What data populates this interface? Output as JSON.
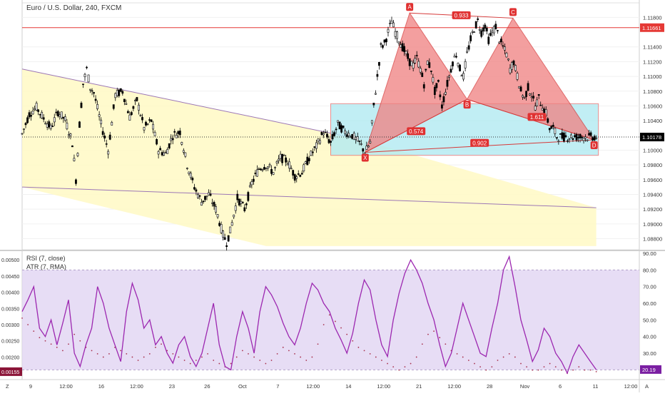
{
  "header": {
    "symbol_title": "Euro / U.S. Dollar, 240, FXCM"
  },
  "indicators": {
    "rsi_label": "RSI (7, close)",
    "atr_label": "ATR (7, RMA)"
  },
  "chart_data": [
    {
      "type": "candlestick",
      "title": "Euro / U.S. Dollar, 240, FXCM",
      "ylim": [
        1.0865,
        1.1192
      ],
      "y_ticks": [
        "1.11800",
        "1.11661",
        "1.11400",
        "1.11200",
        "1.11000",
        "1.10800",
        "1.10600",
        "1.10400",
        "1.10178",
        "1.10000",
        "1.09800",
        "1.09600",
        "1.09400",
        "1.09200",
        "1.09000",
        "1.08800"
      ],
      "x_ticks": [
        "9",
        "12:00",
        "16",
        "12:00",
        "23",
        "26",
        "Oct",
        "7",
        "12:00",
        "14",
        "12:00",
        "21",
        "12:00",
        "28",
        "Nov",
        "6",
        "11",
        "12:00"
      ],
      "last_price": 1.10178,
      "resistance_level": 1.11661,
      "price_path": [
        [
          0,
          1.1022
        ],
        [
          10,
          1.1049
        ],
        [
          20,
          1.1058
        ],
        [
          30,
          1.1043
        ],
        [
          40,
          1.103
        ],
        [
          50,
          1.1052
        ],
        [
          60,
          1.1041
        ],
        [
          70,
          1.101
        ],
        [
          75,
          1.096
        ],
        [
          80,
          1.1035
        ],
        [
          85,
          1.109
        ],
        [
          90,
          1.111
        ],
        [
          95,
          1.1085
        ],
        [
          100,
          1.1078
        ],
        [
          110,
          1.1035
        ],
        [
          120,
          1.1
        ],
        [
          130,
          1.1075
        ],
        [
          140,
          1.108
        ],
        [
          150,
          1.1045
        ],
        [
          160,
          1.1068
        ],
        [
          170,
          1.103
        ],
        [
          180,
          1.104
        ],
        [
          190,
          1.1
        ],
        [
          200,
          1.0995
        ],
        [
          210,
          1.102
        ],
        [
          220,
          1.1025
        ],
        [
          230,
          1.098
        ],
        [
          240,
          1.095
        ],
        [
          250,
          1.093
        ],
        [
          260,
          1.094
        ],
        [
          270,
          1.092
        ],
        [
          280,
          1.0885
        ],
        [
          285,
          1.0875
        ],
        [
          290,
          1.089
        ],
        [
          300,
          1.0935
        ],
        [
          310,
          1.092
        ],
        [
          320,
          1.0955
        ],
        [
          330,
          1.0975
        ],
        [
          340,
          1.098
        ],
        [
          350,
          1.097
        ],
        [
          360,
          1.099
        ],
        [
          370,
          1.0985
        ],
        [
          380,
          1.0965
        ],
        [
          390,
          1.097
        ],
        [
          400,
          1.099
        ],
        [
          410,
          1.1005
        ],
        [
          420,
          1.1025
        ],
        [
          430,
          1.101
        ],
        [
          440,
          1.1035
        ],
        [
          450,
          1.1025
        ],
        [
          460,
          1.102
        ],
        [
          470,
          1.101
        ],
        [
          478,
          1.0997
        ],
        [
          485,
          1.101
        ],
        [
          490,
          1.106
        ],
        [
          495,
          1.11
        ],
        [
          500,
          1.114
        ],
        [
          505,
          1.1145
        ],
        [
          510,
          1.116
        ],
        [
          515,
          1.1175
        ],
        [
          520,
          1.116
        ],
        [
          525,
          1.115
        ],
        [
          530,
          1.114
        ],
        [
          535,
          1.113
        ],
        [
          540,
          1.112
        ],
        [
          545,
          1.1115
        ],
        [
          550,
          1.1125
        ],
        [
          555,
          1.111
        ],
        [
          560,
          1.109
        ],
        [
          565,
          1.112
        ],
        [
          570,
          1.111
        ],
        [
          575,
          1.108
        ],
        [
          580,
          1.109
        ],
        [
          585,
          1.106
        ],
        [
          590,
          1.108
        ],
        [
          595,
          1.11
        ],
        [
          600,
          1.112
        ],
        [
          605,
          1.113
        ],
        [
          610,
          1.111
        ],
        [
          615,
          1.11
        ],
        [
          620,
          1.113
        ],
        [
          625,
          1.115
        ],
        [
          630,
          1.1165
        ],
        [
          635,
          1.1175
        ],
        [
          640,
          1.116
        ],
        [
          645,
          1.117
        ],
        [
          650,
          1.115
        ],
        [
          655,
          1.116
        ],
        [
          660,
          1.1168
        ],
        [
          665,
          1.115
        ],
        [
          670,
          1.114
        ],
        [
          675,
          1.113
        ],
        [
          680,
          1.111
        ],
        [
          685,
          1.112
        ],
        [
          690,
          1.11
        ],
        [
          695,
          1.108
        ],
        [
          700,
          1.107
        ],
        [
          705,
          1.1085
        ],
        [
          710,
          1.1075
        ],
        [
          715,
          1.106
        ],
        [
          720,
          1.107
        ],
        [
          725,
          1.106
        ],
        [
          730,
          1.105
        ],
        [
          735,
          1.103
        ],
        [
          740,
          1.103
        ],
        [
          745,
          1.1018
        ]
      ],
      "harmonic_pattern": {
        "points": [
          {
            "label": "X",
            "bar": 478,
            "price": 1.0997
          },
          {
            "label": "A",
            "bar": 540,
            "price": 1.1186
          },
          {
            "label": "B",
            "bar": 620,
            "price": 1.1069
          },
          {
            "label": "C",
            "bar": 684,
            "price": 1.1179
          },
          {
            "label": "D",
            "bar": 797,
            "price": 1.1014
          }
        ],
        "ratios": [
          {
            "label": "0.933",
            "between": "A-C"
          },
          {
            "label": "0.574",
            "between": "X-B"
          },
          {
            "label": "1.611",
            "between": "B-D"
          },
          {
            "label": "0.902",
            "between": "X-D"
          }
        ],
        "colors": {
          "fill": "#f08080",
          "line": "#d63939",
          "label": "#e03131"
        }
      },
      "zone_box": {
        "price_top": 1.1063,
        "price_bottom": 1.0993,
        "bar_start": 430,
        "bar_end": 803,
        "color": "#b2ebf2"
      },
      "channel": {
        "color": "#fff9c4",
        "line": "#9c77b5"
      }
    },
    {
      "type": "line",
      "title": "RSI (7, close)",
      "ylim": [
        15,
        90
      ],
      "y_ticks": [
        "90.00",
        "80.00",
        "70.00",
        "60.00",
        "50.00",
        "40.00",
        "30.00",
        "20.19"
      ],
      "band": [
        20,
        80
      ],
      "last_value": 20.19,
      "series": [
        {
          "name": "RSI (7, close)",
          "values": [
            55,
            62,
            70,
            45,
            40,
            50,
            35,
            48,
            62,
            30,
            22,
            35,
            45,
            70,
            60,
            45,
            35,
            25,
            55,
            72,
            62,
            45,
            50,
            35,
            40,
            30,
            24,
            35,
            40,
            28,
            22,
            30,
            45,
            60,
            35,
            22,
            20,
            40,
            55,
            45,
            30,
            55,
            70,
            65,
            58,
            48,
            40,
            35,
            45,
            60,
            72,
            68,
            60,
            55,
            45,
            38,
            30,
            42,
            60,
            74,
            68,
            50,
            35,
            28,
            50,
            66,
            78,
            86,
            80,
            72,
            60,
            50,
            35,
            22,
            30,
            45,
            60,
            50,
            40,
            30,
            28,
            45,
            60,
            80,
            88,
            70,
            50,
            38,
            25,
            32,
            45,
            40,
            30,
            25,
            18,
            28,
            35,
            30,
            25,
            20
          ]
        }
      ],
      "colors": {
        "line": "#9c27b0",
        "band": "#e1d4f2"
      }
    },
    {
      "type": "scatter",
      "title": "ATR (7, RMA)",
      "ylim": [
        0.00135,
        0.0052
      ],
      "y_ticks": [
        "0.00500",
        "0.00450",
        "0.00400",
        "0.00350",
        "0.00300",
        "0.00250",
        "0.00200",
        "0.00155"
      ],
      "last_value": 0.00155,
      "series": [
        {
          "name": "ATR (7, RMA)",
          "values": [
            0.0032,
            0.003,
            0.0028,
            0.0026,
            0.0025,
            0.0024,
            0.0023,
            0.0022,
            0.0024,
            0.0027,
            0.0025,
            0.0023,
            0.0022,
            0.0021,
            0.002,
            0.0021,
            0.0023,
            0.0022,
            0.0021,
            0.002,
            0.0019,
            0.002,
            0.0021,
            0.0023,
            0.0024,
            0.0022,
            0.0021,
            0.002,
            0.0019,
            0.0018,
            0.0019,
            0.002,
            0.0021,
            0.0019,
            0.0018,
            0.0017,
            0.0018,
            0.002,
            0.0022,
            0.0021,
            0.002,
            0.0019,
            0.0018,
            0.0019,
            0.0021,
            0.0023,
            0.0022,
            0.0021,
            0.002,
            0.0019,
            0.002,
            0.0024,
            0.003,
            0.0033,
            0.0031,
            0.0029,
            0.0027,
            0.0025,
            0.0023,
            0.0022,
            0.0021,
            0.002,
            0.0019,
            0.0018,
            0.0017,
            0.0016,
            0.0017,
            0.0018,
            0.002,
            0.0024,
            0.0027,
            0.0028,
            0.0026,
            0.0024,
            0.0022,
            0.0021,
            0.002,
            0.0019,
            0.0018,
            0.0017,
            0.0016,
            0.0017,
            0.0019,
            0.002,
            0.0021,
            0.002,
            0.0018,
            0.0017,
            0.0016,
            0.0016,
            0.0017,
            0.0018,
            0.0017,
            0.0016,
            0.0015,
            0.0016,
            0.0017,
            0.0016,
            0.0016,
            0.00155
          ]
        }
      ],
      "colors": {
        "dot": "#a8324f"
      }
    }
  ],
  "axis_footer": {
    "left_button": "Z",
    "right_button": "A"
  },
  "colors": {
    "background": "#ffffff",
    "bull": "#ffffff",
    "bear": "#000000",
    "grid": "#eeeeee",
    "resistance": "#e53935",
    "price_tag": "#000000",
    "rsi_tag": "#7b1fa2",
    "atr_tag": "#8b1538"
  }
}
